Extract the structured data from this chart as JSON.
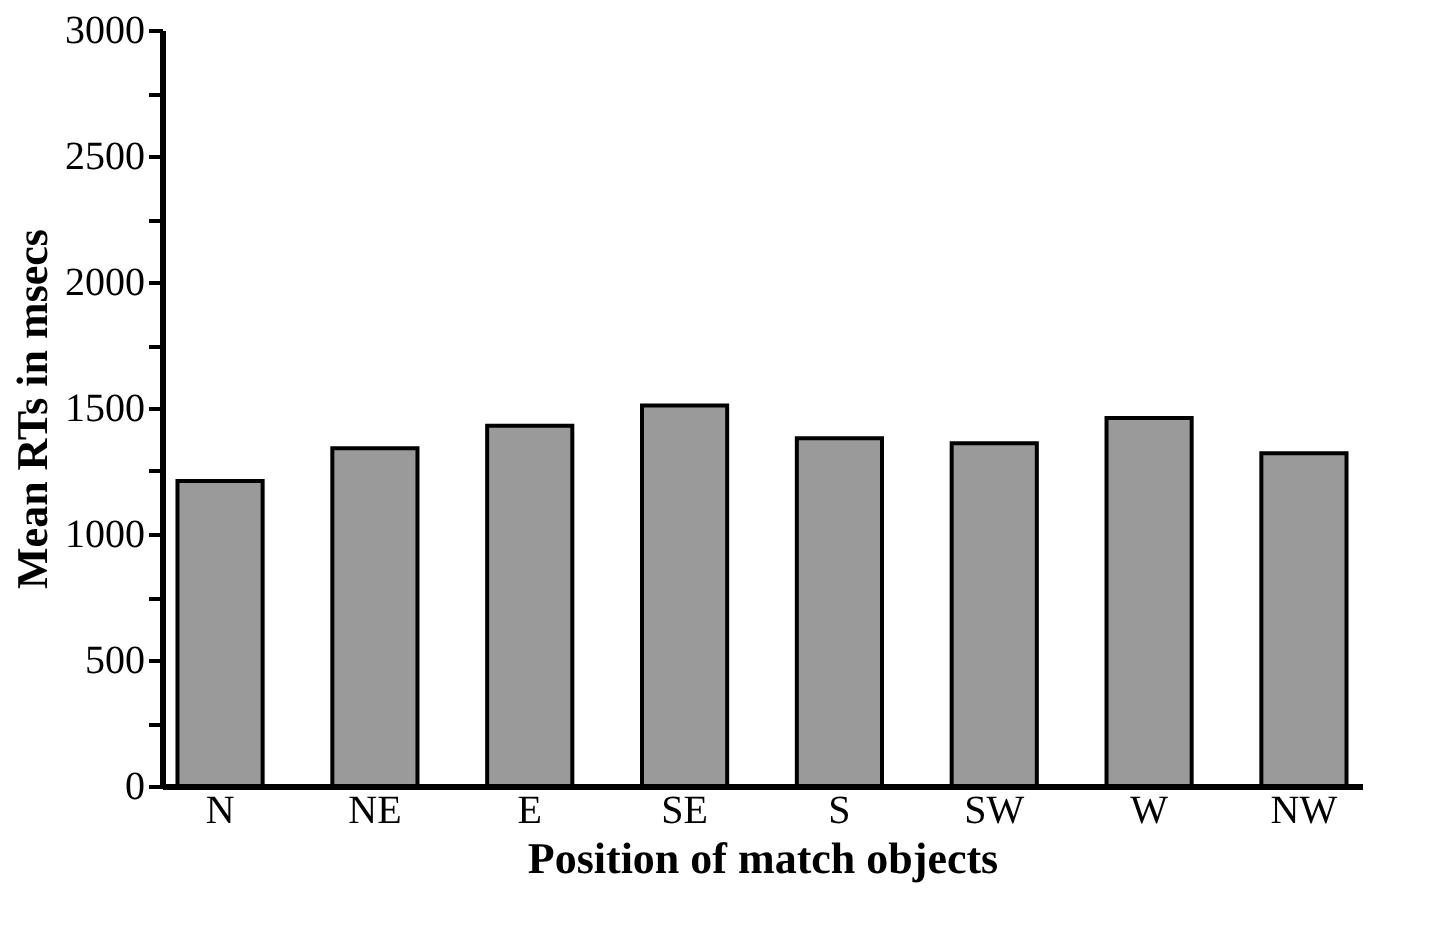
{
  "chart_data": {
    "type": "bar",
    "xlabel": "Position of match objects",
    "ylabel": "Mean RTs in msecs",
    "categories": [
      "N",
      "NE",
      "E",
      "SE",
      "S",
      "SW",
      "W",
      "NW"
    ],
    "values": [
      1210,
      1340,
      1430,
      1510,
      1380,
      1360,
      1460,
      1320
    ],
    "color": "#9a9a9a",
    "ylim": [
      0,
      3000
    ],
    "yticks": [
      0,
      {
        "value": 250,
        "label": null
      },
      500,
      {
        "value": 750,
        "label": null
      },
      1000,
      {
        "value": 1250,
        "label": null
      },
      1500,
      {
        "value": 1750,
        "label": null
      },
      2000,
      {
        "value": 2250,
        "label": null
      },
      2500,
      {
        "value": 2750,
        "label": null
      },
      3000
    ],
    "grid": false
  }
}
